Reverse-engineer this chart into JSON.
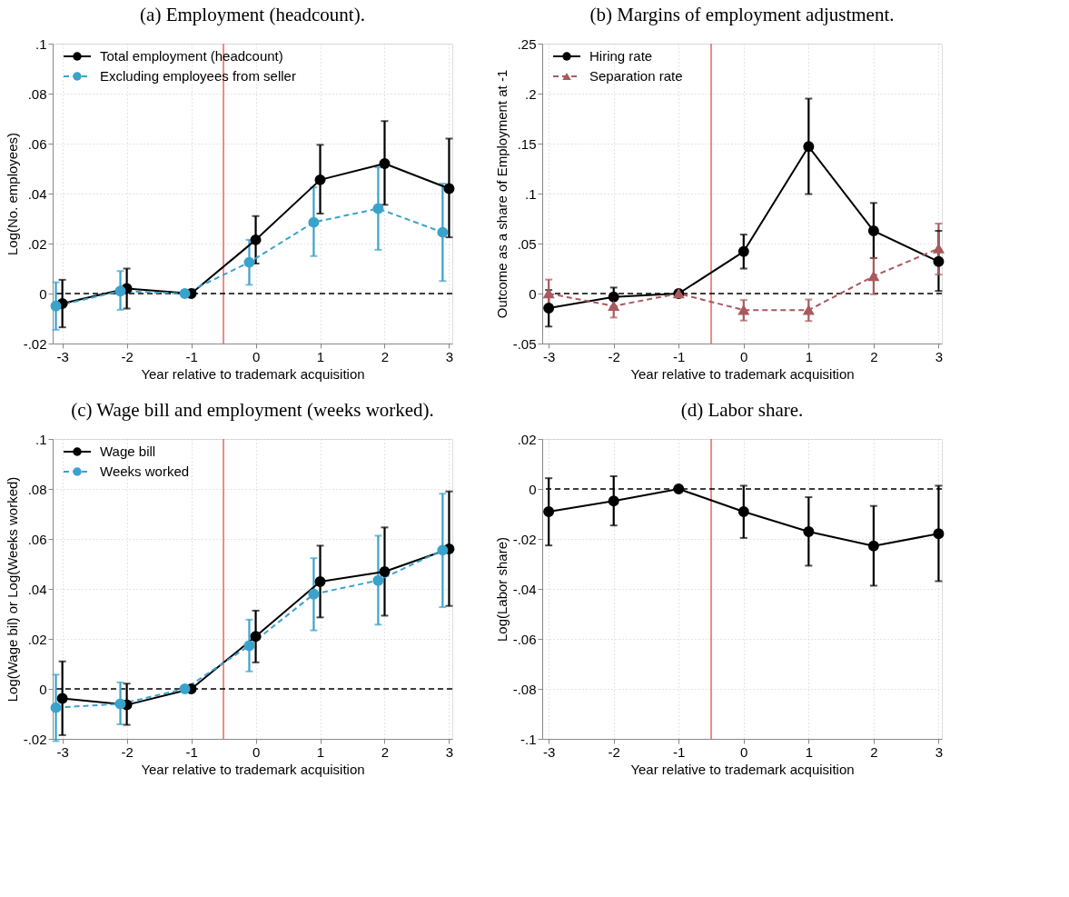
{
  "chart_data": [
    {
      "type": "line",
      "title": "(a) Employment (headcount).",
      "xlabel": "Year relative to trademark acquisition",
      "ylabel": "Log(No. employees)",
      "xlim": [
        -3.15,
        3.05
      ],
      "xticks": [
        -3,
        -2,
        -1,
        0,
        1,
        2,
        3
      ],
      "ylim": [
        -0.02,
        0.1
      ],
      "yticks": [
        {
          "value": -0.02,
          "label": "-.02"
        },
        0,
        {
          "value": 0.02,
          "label": ".02"
        },
        {
          "value": 0.04,
          "label": ".04"
        },
        {
          "value": 0.06,
          "label": ".06"
        },
        {
          "value": 0.08,
          "label": ".08"
        },
        {
          "value": 0.1,
          "label": ".1"
        }
      ],
      "grid": true,
      "legend": "top left",
      "ref_lines": [
        {
          "axis": "x",
          "value": -0.5,
          "color": "#f0625a",
          "line_style": "solid"
        },
        {
          "axis": "y",
          "value": 0,
          "color": "#000000",
          "line_style": "dashed"
        }
      ],
      "series": [
        {
          "name": "Total employment (headcount)",
          "color": "#000000",
          "marker": "circle",
          "line_style": "solid",
          "x": [
            -3,
            -2,
            -1,
            0,
            1,
            2,
            3
          ],
          "values": [
            -0.004,
            0.002,
            0,
            0.0215,
            0.0455,
            0.052,
            0.042
          ],
          "errors": [
            [
              -0.0135,
              0.0055
            ],
            [
              -0.006,
              0.01
            ],
            null,
            [
              0.012,
              0.031
            ],
            [
              0.032,
              0.0595
            ],
            [
              0.0355,
              0.069
            ],
            [
              0.0225,
              0.062
            ]
          ]
        },
        {
          "name": "Excluding employees from seller",
          "color": "#3aa3cc",
          "marker": "circle",
          "line_style": "dashed",
          "x": [
            -3.1,
            -2.1,
            -1.1,
            -0.1,
            0.9,
            1.9,
            2.9
          ],
          "values": [
            -0.005,
            0.001,
            0,
            0.0125,
            0.0285,
            0.034,
            0.0245
          ],
          "errors": [
            [
              -0.0145,
              0.0045
            ],
            [
              -0.0065,
              0.009
            ],
            null,
            [
              0.0035,
              0.0215
            ],
            [
              0.015,
              0.0425
            ],
            [
              0.0175,
              0.0505
            ],
            [
              0.005,
              0.044
            ]
          ]
        }
      ]
    },
    {
      "type": "line",
      "title": "(b) Margins of employment adjustment.",
      "xlabel": "Year relative to trademark acquisition",
      "ylabel": "Outcome as a share of Employment at -1",
      "xlim": [
        -3.1,
        3.05
      ],
      "xticks": [
        -3,
        -2,
        -1,
        0,
        1,
        2,
        3
      ],
      "ylim": [
        -0.05,
        0.25
      ],
      "yticks": [
        {
          "value": -0.05,
          "label": "-.05"
        },
        0,
        {
          "value": 0.05,
          "label": ".05"
        },
        {
          "value": 0.1,
          "label": ".1"
        },
        {
          "value": 0.15,
          "label": ".15"
        },
        {
          "value": 0.2,
          "label": ".2"
        },
        {
          "value": 0.25,
          "label": ".25"
        }
      ],
      "grid": true,
      "legend": "top left",
      "ref_lines": [
        {
          "axis": "x",
          "value": -0.5,
          "color": "#f0625a",
          "line_style": "solid"
        },
        {
          "axis": "y",
          "value": 0,
          "color": "#000000",
          "line_style": "dashed"
        }
      ],
      "series": [
        {
          "name": "Hiring rate",
          "color": "#000000",
          "marker": "circle",
          "line_style": "solid",
          "x": [
            -3,
            -2,
            -1,
            0,
            1,
            2,
            3
          ],
          "values": [
            -0.0145,
            -0.0035,
            0,
            0.042,
            0.147,
            0.0627,
            0.032
          ],
          "errors": [
            [
              -0.033,
              0.0035
            ],
            [
              -0.013,
              0.006
            ],
            null,
            [
              0.025,
              0.059
            ],
            [
              0.0995,
              0.195
            ],
            [
              0.0355,
              0.0906
            ],
            [
              0.0026,
              0.0627
            ]
          ]
        },
        {
          "name": "Separation rate",
          "color": "#a85a5e",
          "marker": "triangle",
          "line_style": "dashed",
          "x": [
            -3,
            -2,
            -1,
            0,
            1,
            2,
            3
          ],
          "values": [
            0,
            -0.0125,
            0,
            -0.0165,
            -0.0165,
            0.0174,
            0.045
          ],
          "errors": [
            [
              -0.013,
              0.014
            ],
            [
              -0.024,
              -0.001
            ],
            null,
            [
              -0.027,
              -0.0065
            ],
            [
              -0.0275,
              -0.006
            ],
            [
              -0.0007,
              0.0355
            ],
            [
              0.019,
              0.07
            ]
          ]
        }
      ]
    },
    {
      "type": "line",
      "title": "(c) Wage bill and employment (weeks worked).",
      "xlabel": "Year relative to trademark acquisition",
      "ylabel": "Log(Wage bil) or Log(Weeks worked)",
      "xlim": [
        -3.15,
        3.05
      ],
      "xticks": [
        -3,
        -2,
        -1,
        0,
        1,
        2,
        3
      ],
      "ylim": [
        -0.02,
        0.1
      ],
      "yticks": [
        {
          "value": -0.02,
          "label": "-.02"
        },
        0,
        {
          "value": 0.02,
          "label": ".02"
        },
        {
          "value": 0.04,
          "label": ".04"
        },
        {
          "value": 0.06,
          "label": ".06"
        },
        {
          "value": 0.08,
          "label": ".08"
        },
        {
          "value": 0.1,
          "label": ".1"
        }
      ],
      "grid": true,
      "legend": "top left",
      "ref_lines": [
        {
          "axis": "x",
          "value": -0.5,
          "color": "#f0625a",
          "line_style": "solid"
        },
        {
          "axis": "y",
          "value": 0,
          "color": "#000000",
          "line_style": "dashed"
        }
      ],
      "series": [
        {
          "name": "Wage bill",
          "color": "#000000",
          "marker": "circle",
          "line_style": "solid",
          "x": [
            -3,
            -2,
            -1,
            0,
            1,
            2,
            3
          ],
          "values": [
            -0.0038,
            -0.0064,
            0,
            0.021,
            0.0429,
            0.0469,
            0.056
          ],
          "errors": [
            [
              -0.0185,
              0.011
            ],
            [
              -0.0144,
              0.0021
            ],
            null,
            [
              0.0106,
              0.0313
            ],
            [
              0.0286,
              0.0573
            ],
            [
              0.0293,
              0.0646
            ],
            [
              0.0332,
              0.079
            ]
          ]
        },
        {
          "name": "Weeks worked",
          "color": "#3aa3cc",
          "marker": "circle",
          "line_style": "dashed",
          "x": [
            -3.1,
            -2.1,
            -1.1,
            -0.1,
            0.9,
            1.9,
            2.9
          ],
          "values": [
            -0.0075,
            -0.006,
            0,
            0.0173,
            0.0379,
            0.0434,
            0.0555
          ],
          "errors": [
            [
              -0.0209,
              0.0057
            ],
            [
              -0.0142,
              0.0026
            ],
            null,
            [
              0.007,
              0.0277
            ],
            [
              0.0234,
              0.0523
            ],
            [
              0.0257,
              0.0613
            ],
            [
              0.0327,
              0.0781
            ]
          ]
        }
      ]
    },
    {
      "type": "line",
      "title": "(d) Labor share.",
      "xlabel": "Year relative to trademark acquisition",
      "ylabel": "Log(Labor share)",
      "xlim": [
        -3.1,
        3.05
      ],
      "xticks": [
        -3,
        -2,
        -1,
        0,
        1,
        2,
        3
      ],
      "ylim": [
        -0.1,
        0.02
      ],
      "yticks": [
        {
          "value": -0.1,
          "label": "-.1"
        },
        {
          "value": -0.08,
          "label": "-.08"
        },
        {
          "value": -0.06,
          "label": "-.06"
        },
        {
          "value": -0.04,
          "label": "-.04"
        },
        {
          "value": -0.02,
          "label": "-.02"
        },
        0,
        {
          "value": 0.02,
          "label": ".02"
        }
      ],
      "grid": true,
      "ref_lines": [
        {
          "axis": "x",
          "value": -0.5,
          "color": "#f0625a",
          "line_style": "solid"
        },
        {
          "axis": "y",
          "value": 0,
          "color": "#000000",
          "line_style": "dashed"
        }
      ],
      "series": [
        {
          "color": "#000000",
          "marker": "circle",
          "line_style": "solid",
          "x": [
            -3,
            -2,
            -1,
            0,
            1,
            2,
            3
          ],
          "values": [
            -0.0091,
            -0.0048,
            0,
            -0.0091,
            -0.0171,
            -0.0228,
            -0.0179
          ],
          "errors": [
            [
              -0.0226,
              0.0043
            ],
            [
              -0.0146,
              0.0051
            ],
            null,
            [
              -0.0196,
              0.0013
            ],
            [
              -0.0307,
              -0.0033
            ],
            [
              -0.0387,
              -0.0068
            ],
            [
              -0.0369,
              0.0013
            ]
          ]
        }
      ]
    }
  ]
}
